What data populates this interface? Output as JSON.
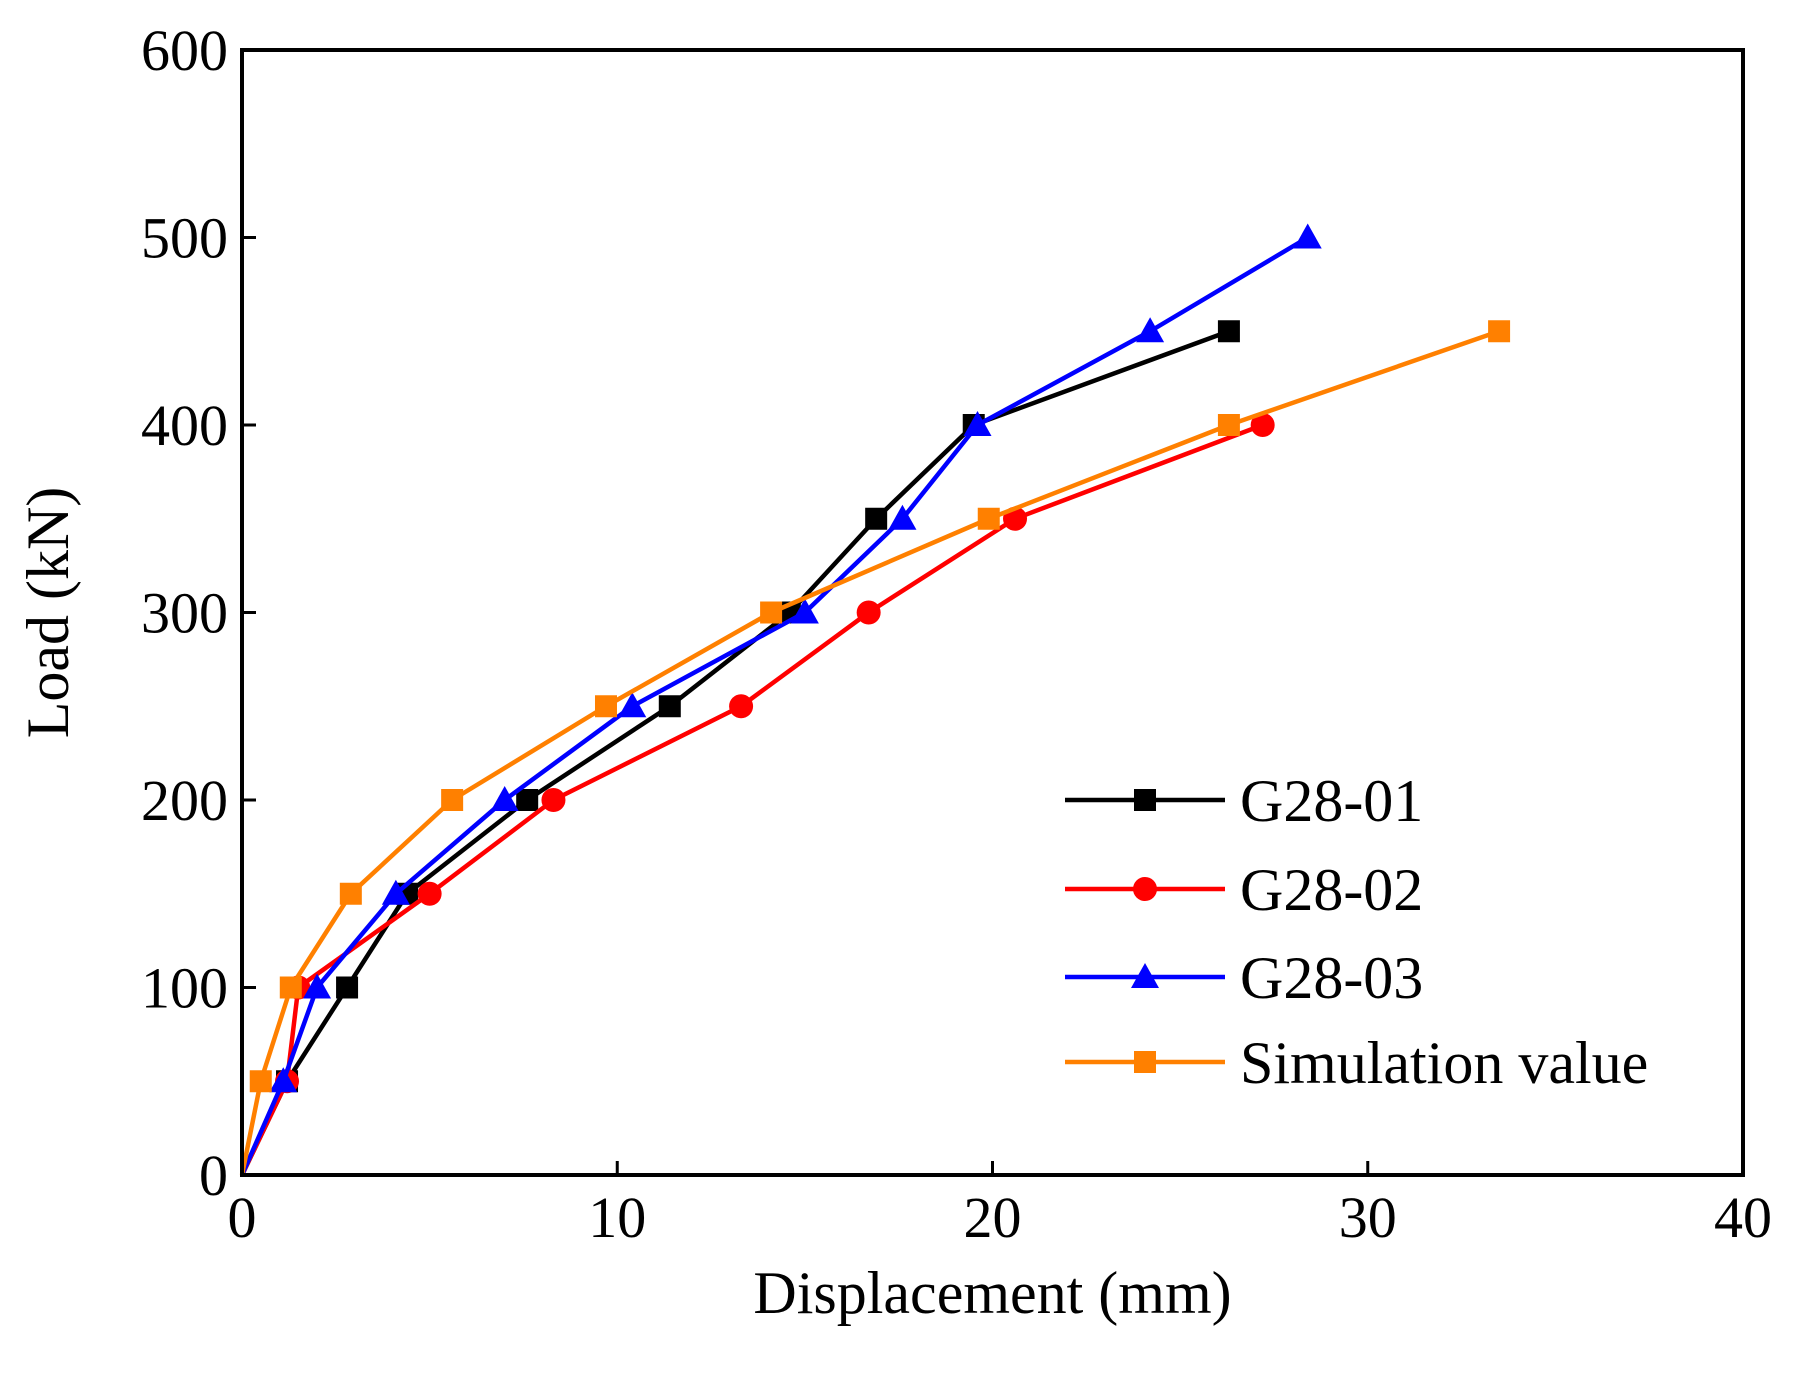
{
  "chart_data": {
    "type": "line",
    "title": "",
    "xlabel": "Displacement (mm)",
    "ylabel": "Load (kN)",
    "xlim": [
      0,
      40
    ],
    "ylim": [
      0,
      600
    ],
    "xticks": [
      0,
      10,
      20,
      30,
      40
    ],
    "yticks": [
      0,
      100,
      200,
      300,
      400,
      500,
      600
    ],
    "grid": false,
    "legend_position": "bottom-right",
    "series": [
      {
        "name": "G28-01",
        "color": "#000000",
        "marker": "square",
        "x": [
          0,
          1.2,
          2.8,
          4.4,
          7.6,
          11.4,
          14.6,
          16.9,
          19.5,
          26.3
        ],
        "y": [
          0,
          50,
          100,
          150,
          200,
          250,
          300,
          350,
          400,
          450
        ]
      },
      {
        "name": "G28-02",
        "color": "#ff0000",
        "marker": "circle",
        "x": [
          0,
          1.2,
          1.5,
          5.0,
          8.3,
          13.3,
          16.7,
          20.6,
          27.2
        ],
        "y": [
          0,
          50,
          100,
          150,
          200,
          250,
          300,
          350,
          400
        ]
      },
      {
        "name": "G28-03",
        "color": "#0000ff",
        "marker": "triangle",
        "x": [
          0,
          1.1,
          2.0,
          4.1,
          7.0,
          10.4,
          15.0,
          17.6,
          19.6,
          24.2,
          28.4
        ],
        "y": [
          0,
          50,
          100,
          150,
          200,
          250,
          300,
          350,
          400,
          450,
          500
        ]
      },
      {
        "name": "Simulation value",
        "color": "#ff8000",
        "marker": "square",
        "x": [
          0,
          0.5,
          1.3,
          2.9,
          5.6,
          9.7,
          14.1,
          19.9,
          26.3,
          33.5
        ],
        "y": [
          0,
          50,
          100,
          150,
          200,
          250,
          300,
          350,
          400,
          450
        ]
      }
    ]
  }
}
